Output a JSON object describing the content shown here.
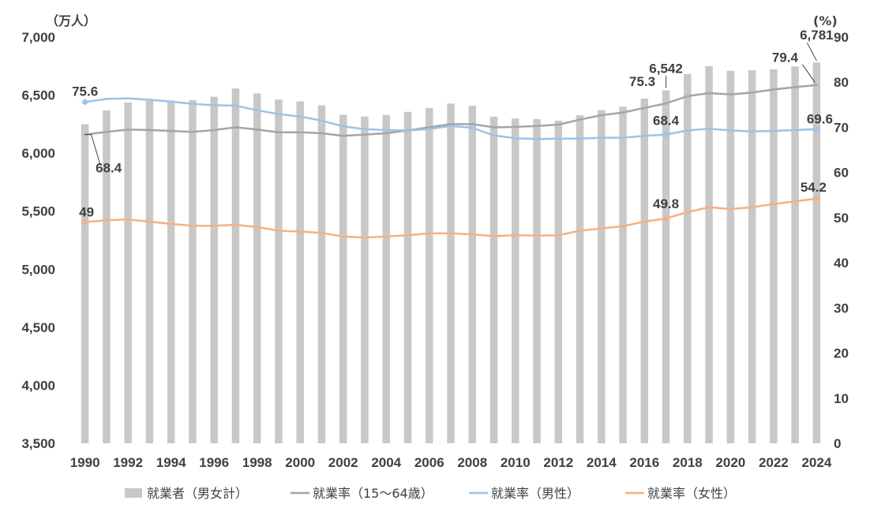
{
  "chart_data": {
    "type": "bar+line",
    "left_axis_unit": "（万人）",
    "right_axis_unit": "(%)",
    "left_axis": {
      "min": 3500,
      "max": 7000,
      "step": 500,
      "tick_labels": [
        "3,500",
        "4,000",
        "4,500",
        "5,000",
        "5,500",
        "6,000",
        "6,500",
        "7,000"
      ]
    },
    "right_axis": {
      "min": 0,
      "max": 90,
      "step": 10,
      "tick_labels": [
        "0",
        "10",
        "20",
        "30",
        "40",
        "50",
        "60",
        "70",
        "80",
        "90"
      ]
    },
    "x": [
      1990,
      1991,
      1992,
      1993,
      1994,
      1995,
      1996,
      1997,
      1998,
      1999,
      2000,
      2001,
      2002,
      2003,
      2004,
      2005,
      2006,
      2007,
      2008,
      2009,
      2010,
      2011,
      2012,
      2013,
      2014,
      2015,
      2016,
      2017,
      2018,
      2019,
      2020,
      2021,
      2022,
      2023,
      2024
    ],
    "x_tick_labels": [
      "1990",
      "1992",
      "1994",
      "1996",
      "1998",
      "2000",
      "2002",
      "2004",
      "2006",
      "2008",
      "2010",
      "2012",
      "2014",
      "2016",
      "2018",
      "2020",
      "2022",
      "2024"
    ],
    "series": [
      {
        "name": "就業者（男女計）",
        "kind": "bar",
        "axis": "left",
        "color": "#c8c8c8",
        "values": [
          6249,
          6369,
          6436,
          6450,
          6453,
          6457,
          6486,
          6557,
          6514,
          6462,
          6446,
          6412,
          6330,
          6316,
          6329,
          6356,
          6389,
          6427,
          6409,
          6314,
          6298,
          6293,
          6280,
          6326,
          6371,
          6401,
          6470,
          6542,
          6682,
          6750,
          6710,
          6713,
          6723,
          6747,
          6781
        ]
      },
      {
        "name": "就業率（15～64歳）",
        "kind": "line",
        "axis": "right",
        "color": "#a5a5a5",
        "values": [
          68.4,
          69.0,
          69.5,
          69.4,
          69.2,
          69.0,
          69.4,
          70.0,
          69.5,
          68.9,
          68.9,
          68.7,
          68.1,
          68.4,
          68.7,
          69.3,
          70.0,
          70.7,
          70.7,
          70.0,
          70.1,
          70.3,
          70.6,
          71.7,
          72.7,
          73.3,
          74.3,
          75.3,
          76.9,
          77.6,
          77.3,
          77.7,
          78.4,
          78.9,
          79.4
        ]
      },
      {
        "name": "就業率（男性）",
        "kind": "line",
        "axis": "right",
        "color": "#9dc3e6",
        "values": [
          75.6,
          76.3,
          76.4,
          76.1,
          75.7,
          75.2,
          74.9,
          74.8,
          73.8,
          72.9,
          72.4,
          71.5,
          70.2,
          69.6,
          69.4,
          69.3,
          69.6,
          70.3,
          69.9,
          68.2,
          67.6,
          67.4,
          67.5,
          67.5,
          67.7,
          67.7,
          68.1,
          68.4,
          69.3,
          69.7,
          69.3,
          69.1,
          69.2,
          69.4,
          69.6
        ]
      },
      {
        "name": "就業率（女性）",
        "kind": "line",
        "axis": "right",
        "color": "#f4b183",
        "values": [
          49.0,
          49.4,
          49.6,
          49.1,
          48.6,
          48.2,
          48.2,
          48.4,
          47.9,
          47.1,
          46.9,
          46.6,
          45.8,
          45.6,
          45.8,
          46.1,
          46.5,
          46.5,
          46.3,
          45.9,
          46.1,
          46.0,
          46.1,
          47.1,
          47.6,
          48.1,
          49.1,
          49.8,
          51.2,
          52.3,
          51.9,
          52.3,
          53.0,
          53.6,
          54.2
        ]
      }
    ],
    "data_labels": [
      {
        "text": "75.6",
        "series": 2,
        "index": 0
      },
      {
        "text": "68.4",
        "series": 1,
        "index": 0
      },
      {
        "text": "49",
        "series": 3,
        "index": 0
      },
      {
        "text": "75.3",
        "series": 1,
        "index": 27
      },
      {
        "text": "6,542",
        "series": 0,
        "index": 27
      },
      {
        "text": "68.4",
        "series": 2,
        "index": 27
      },
      {
        "text": "49.8",
        "series": 3,
        "index": 27
      },
      {
        "text": "79.4",
        "series": 1,
        "index": 34
      },
      {
        "text": "6,781",
        "series": 0,
        "index": 34
      },
      {
        "text": "69.6",
        "series": 2,
        "index": 34
      },
      {
        "text": "54.2",
        "series": 3,
        "index": 34
      }
    ],
    "legend_position": "bottom"
  }
}
